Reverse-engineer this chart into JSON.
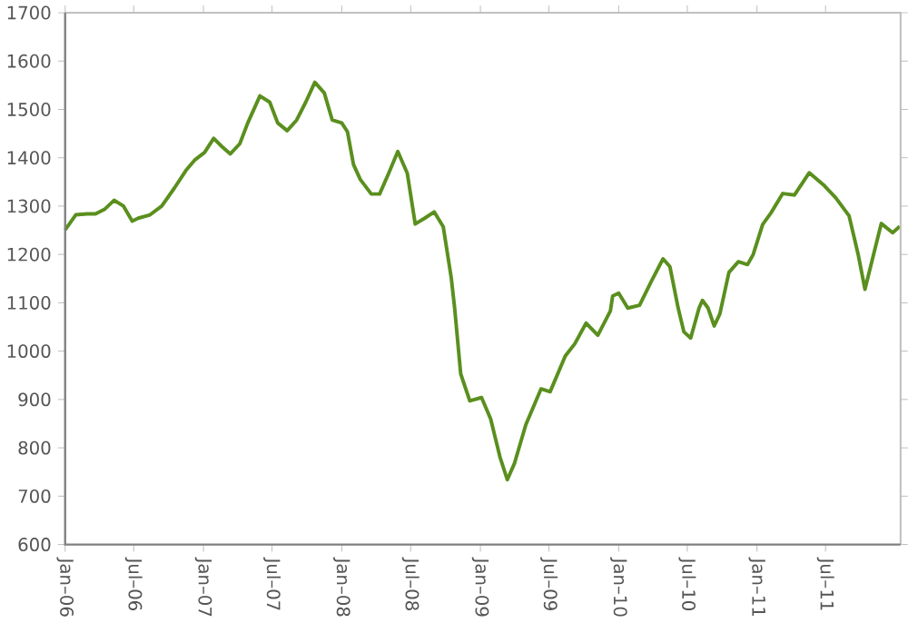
{
  "chart_data": {
    "type": "line",
    "x": [
      "2006-01-01",
      "2006-01-29",
      "2006-02-28",
      "2006-03-22",
      "2006-04-16",
      "2006-05-10",
      "2006-06-04",
      "2006-06-27",
      "2006-07-13",
      "2006-08-13",
      "2006-09-13",
      "2006-10-16",
      "2006-11-16",
      "2006-12-10",
      "2007-01-04",
      "2007-01-28",
      "2007-02-19",
      "2007-03-13",
      "2007-04-07",
      "2007-04-28",
      "2007-05-30",
      "2007-06-25",
      "2007-07-16",
      "2007-08-10",
      "2007-09-04",
      "2007-09-28",
      "2007-10-22",
      "2007-11-16",
      "2007-12-07",
      "2008-01-01",
      "2008-01-16",
      "2008-02-01",
      "2008-02-19",
      "2008-03-19",
      "2008-04-10",
      "2008-05-04",
      "2008-05-28",
      "2008-06-22",
      "2008-07-13",
      "2008-08-07",
      "2008-09-01",
      "2008-09-25",
      "2008-10-16",
      "2008-10-25",
      "2008-11-10",
      "2008-12-04",
      "2009-01-04",
      "2009-01-28",
      "2009-02-22",
      "2009-03-13",
      "2009-04-01",
      "2009-05-01",
      "2009-06-10",
      "2009-07-04",
      "2009-08-13",
      "2009-09-07",
      "2009-10-07",
      "2009-11-07",
      "2009-12-10",
      "2009-12-16",
      "2010-01-01",
      "2010-01-25",
      "2010-02-25",
      "2010-03-28",
      "2010-04-28",
      "2010-05-16",
      "2010-06-07",
      "2010-06-22",
      "2010-07-10",
      "2010-08-01",
      "2010-08-10",
      "2010-08-25",
      "2010-09-10",
      "2010-09-25",
      "2010-10-19",
      "2010-11-13",
      "2010-12-07",
      "2010-12-22",
      "2011-01-16",
      "2011-02-07",
      "2011-03-10",
      "2011-04-10",
      "2011-05-19",
      "2011-06-28",
      "2011-07-28",
      "2011-09-01",
      "2011-09-25",
      "2011-10-13",
      "2011-11-01",
      "2011-11-25",
      "2011-12-25",
      "2012-01-13"
    ],
    "series": [
      {
        "color": "#5a8f1e",
        "values": [
          1251,
          1282,
          1284,
          1284,
          1294,
          1312,
          1300,
          1269,
          1275,
          1282,
          1300,
          1337,
          1374,
          1396,
          1411,
          1440,
          1423,
          1408,
          1429,
          1472,
          1528,
          1515,
          1472,
          1456,
          1478,
          1515,
          1556,
          1534,
          1478,
          1472,
          1454,
          1386,
          1355,
          1325,
          1325,
          1368,
          1413,
          1368,
          1263,
          1275,
          1288,
          1257,
          1152,
          1089,
          953,
          897,
          904,
          860,
          780,
          734,
          768,
          848,
          922,
          916,
          990,
          1015,
          1058,
          1033,
          1083,
          1114,
          1120,
          1089,
          1095,
          1144,
          1191,
          1175,
          1089,
          1040,
          1027,
          1089,
          1105,
          1089,
          1052,
          1077,
          1163,
          1185,
          1179,
          1200,
          1262,
          1286,
          1326,
          1323,
          1369,
          1342,
          1317,
          1280,
          1200,
          1128,
          1188,
          1264,
          1245,
          1258
        ]
      }
    ],
    "xlim": [
      "2006-01-01",
      "2012-01-15"
    ],
    "xticks": [
      {
        "value": "2006-01-01",
        "label": "Jan–06"
      },
      {
        "value": "2006-07-01",
        "label": "Jul–06"
      },
      {
        "value": "2007-01-01",
        "label": "Jan–07"
      },
      {
        "value": "2007-07-01",
        "label": "Jul–07"
      },
      {
        "value": "2008-01-01",
        "label": "Jan–08"
      },
      {
        "value": "2008-07-01",
        "label": "Jul–08"
      },
      {
        "value": "2009-01-01",
        "label": "Jan–09"
      },
      {
        "value": "2009-07-01",
        "label": "Jul–09"
      },
      {
        "value": "2010-01-01",
        "label": "Jan–10"
      },
      {
        "value": "2010-07-01",
        "label": "Jul–10"
      },
      {
        "value": "2011-01-01",
        "label": "Jan–11"
      },
      {
        "value": "2011-07-01",
        "label": "Jul–11"
      }
    ],
    "ylim": [
      600,
      1700
    ],
    "yticks": [
      600,
      700,
      800,
      900,
      1000,
      1100,
      1200,
      1300,
      1400,
      1500,
      1600,
      1700
    ],
    "grid": false,
    "legend": false,
    "marker": "none",
    "line_style": "solid"
  }
}
